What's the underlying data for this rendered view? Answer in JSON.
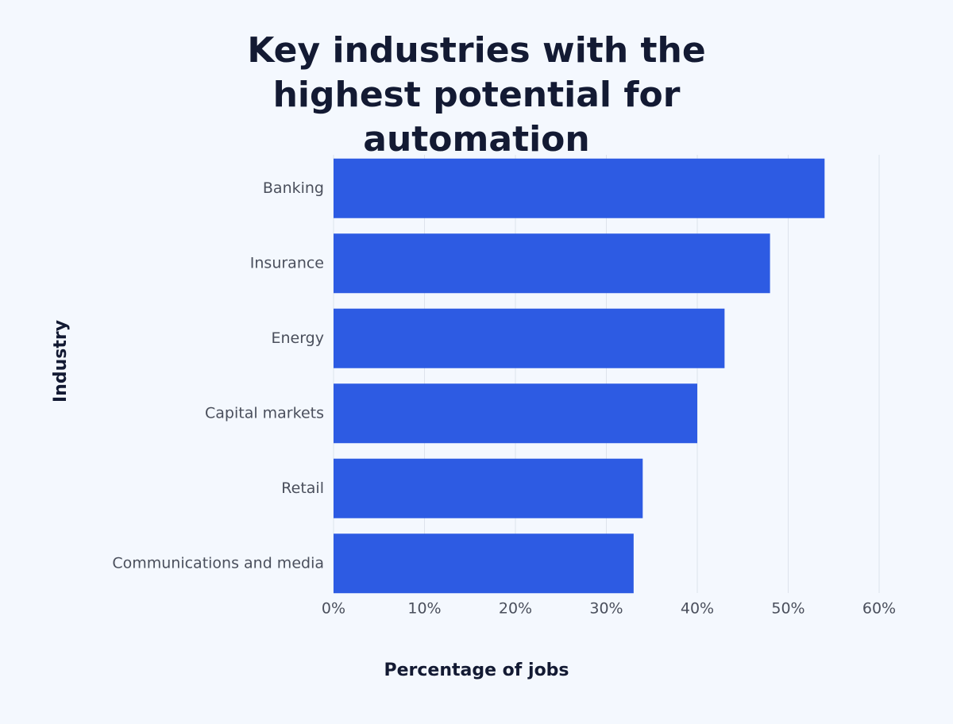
{
  "chart_data": {
    "type": "barh",
    "title": "Key industries with the highest potential for automation",
    "x_label": "Percentage of jobs",
    "y_label": "Industry",
    "categories": [
      "Banking",
      "Insurance",
      "Energy",
      "Capital markets",
      "Retail",
      "Communications and media"
    ],
    "values": [
      54,
      48,
      43,
      40,
      34,
      33
    ],
    "color": "#2d5be3",
    "xlim": [
      0,
      60
    ],
    "xticks": [
      {
        "value": 0,
        "label": "0%"
      },
      {
        "value": 10,
        "label": "10%"
      },
      {
        "value": 20,
        "label": "20%"
      },
      {
        "value": 30,
        "label": "30%"
      },
      {
        "value": 40,
        "label": "40%"
      },
      {
        "value": 50,
        "label": "50%"
      },
      {
        "value": 60,
        "label": "60%"
      }
    ],
    "grid": true
  }
}
